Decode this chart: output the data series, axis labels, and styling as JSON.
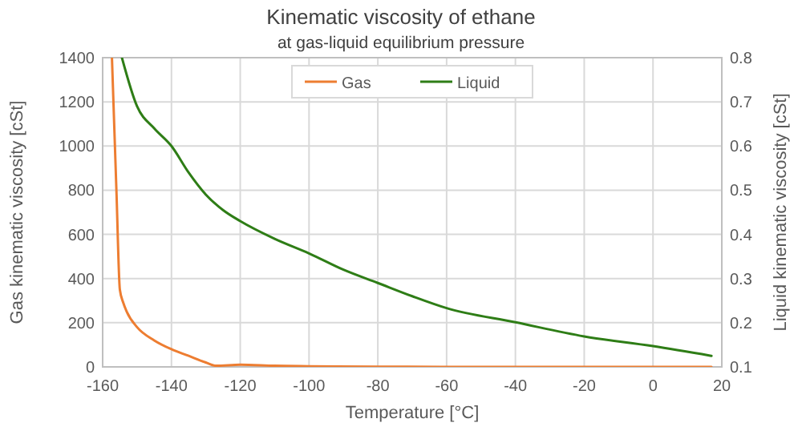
{
  "chart_data": {
    "type": "line",
    "title": "Kinematic viscosity of ethane",
    "subtitle": "at gas-liquid equilibrium pressure",
    "xlabel": "Temperature  [°C]",
    "ylabel": "Gas kinematic viscosity [cSt]",
    "y2label": "Liquid kinematic viscosity [cSt]",
    "xlim": [
      -160,
      20
    ],
    "xticks": [
      -160,
      -140,
      -120,
      -100,
      -80,
      -60,
      -40,
      -20,
      0,
      20
    ],
    "ylim": [
      0,
      1400
    ],
    "yticks": [
      0,
      200,
      400,
      600,
      800,
      1000,
      1200,
      1400
    ],
    "y2lim": [
      0.1,
      0.8
    ],
    "y2ticks": [
      0.1,
      0.2,
      0.3,
      0.4,
      0.5,
      0.6,
      0.7,
      0.8
    ],
    "grid": true,
    "legend": "top",
    "series": [
      {
        "name": "Gas",
        "color": "#ed7d31",
        "x": [
          -157.3,
          -156,
          -155,
          -154,
          -153,
          -150,
          -145,
          -140,
          -135,
          -130,
          -127,
          -120,
          -110,
          -100,
          -80,
          -40,
          0,
          17
        ],
        "values": [
          1400,
          800,
          350,
          290,
          250,
          180,
          120,
          80,
          50,
          20,
          5,
          10,
          5,
          3,
          1,
          0,
          0,
          0
        ]
      },
      {
        "name": "Liquid",
        "color": "#2e7d16",
        "axis": "y2",
        "x": [
          -154.4,
          -150,
          -145,
          -140,
          -135,
          -130,
          -125,
          -120,
          -110,
          -100,
          -90,
          -80,
          -70,
          -60,
          -40,
          -20,
          0,
          17
        ],
        "values": [
          0.8,
          0.69,
          0.64,
          0.6,
          0.54,
          0.49,
          0.455,
          0.43,
          0.39,
          0.357,
          0.32,
          0.29,
          0.26,
          0.233,
          0.201,
          0.169,
          0.147,
          0.125
        ]
      }
    ]
  }
}
